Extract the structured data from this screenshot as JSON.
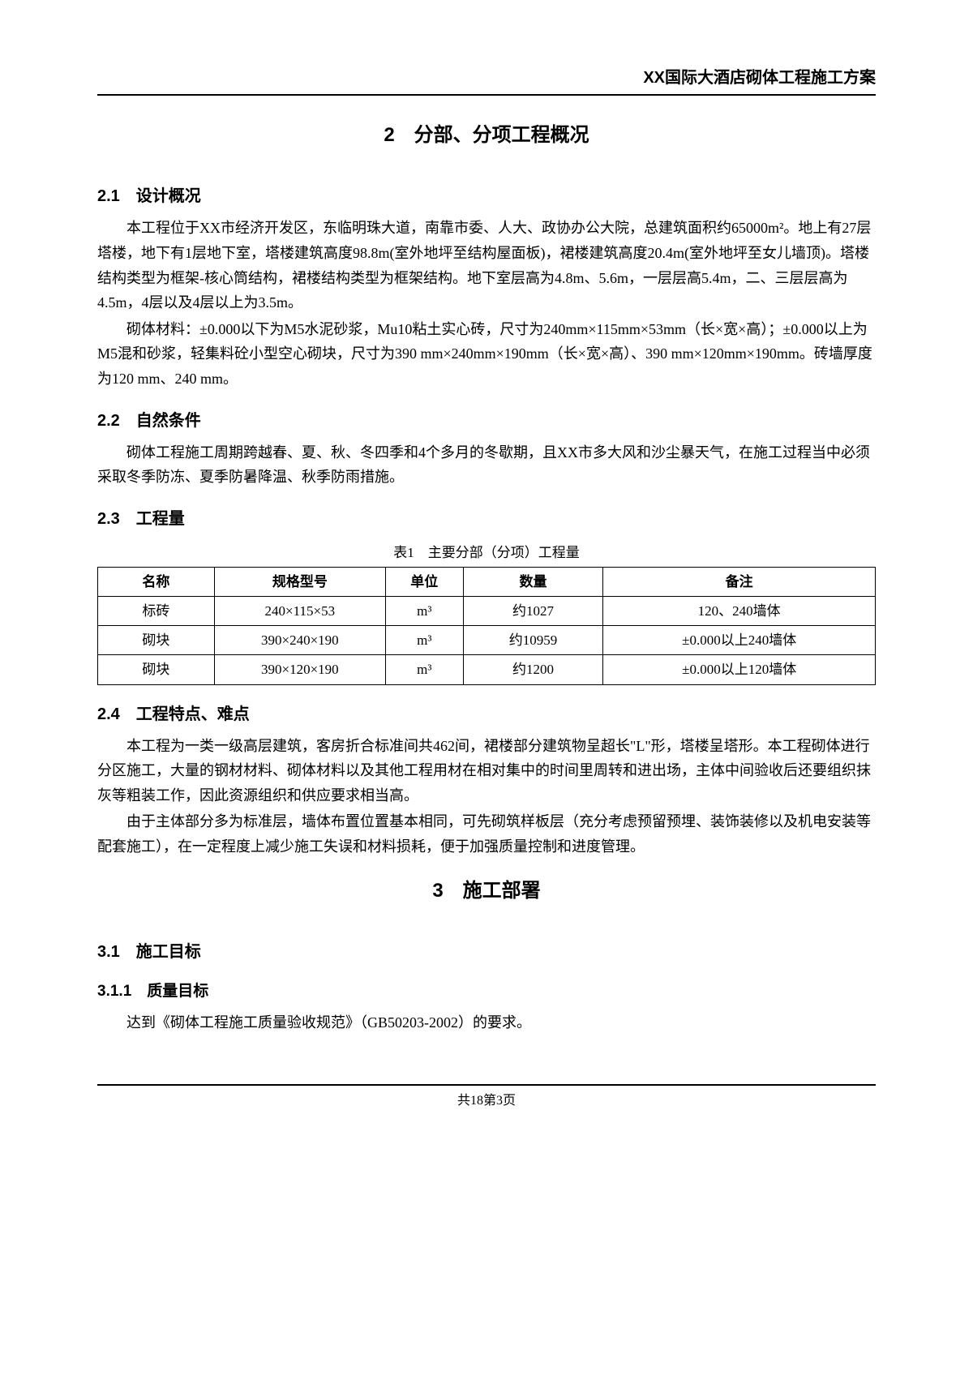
{
  "header": {
    "title": "XX国际大酒店砌体工程施工方案"
  },
  "chapter2": {
    "title": "2　分部、分项工程概况",
    "s2_1": {
      "heading": "2.1　设计概况",
      "p1": "本工程位于XX市经济开发区，东临明珠大道，南靠市委、人大、政协办公大院，总建筑面积约65000m²。地上有27层塔楼，地下有1层地下室，塔楼建筑高度98.8m(室外地坪至结构屋面板)，裙楼建筑高度20.4m(室外地坪至女儿墙顶)。塔楼结构类型为框架-核心筒结构，裙楼结构类型为框架结构。地下室层高为4.8m、5.6m，一层层高5.4m，二、三层层高为4.5m，4层以及4层以上为3.5m。",
      "p2": "砌体材料：±0.000以下为M5水泥砂浆，Mu10粘土实心砖，尺寸为240mm×115mm×53mm（长×宽×高）；±0.000以上为M5混和砂浆，轻集料砼小型空心砌块，尺寸为390 mm×240mm×190mm（长×宽×高）、390 mm×120mm×190mm。砖墙厚度为120 mm、240 mm。"
    },
    "s2_2": {
      "heading": "2.2　自然条件",
      "p1": "砌体工程施工周期跨越春、夏、秋、冬四季和4个多月的冬歇期，且XX市多大风和沙尘暴天气，在施工过程当中必须采取冬季防冻、夏季防暑降温、秋季防雨措施。"
    },
    "s2_3": {
      "heading": "2.3　工程量",
      "table": {
        "caption": "表1　主要分部（分项）工程量",
        "headers": [
          "名称",
          "规格型号",
          "单位",
          "数量",
          "备注"
        ],
        "rows": [
          [
            "标砖",
            "240×115×53",
            "m³",
            "约1027",
            "120、240墙体"
          ],
          [
            "砌块",
            "390×240×190",
            "m³",
            "约10959",
            "±0.000以上240墙体"
          ],
          [
            "砌块",
            "390×120×190",
            "m³",
            "约1200",
            "±0.000以上120墙体"
          ]
        ],
        "col_widths": [
          "15%",
          "22%",
          "10%",
          "18%",
          "35%"
        ]
      }
    },
    "s2_4": {
      "heading": "2.4　工程特点、难点",
      "p1": "本工程为一类一级高层建筑，客房折合标准间共462间，裙楼部分建筑物呈超长\"L\"形，塔楼呈塔形。本工程砌体进行分区施工，大量的钢材材料、砌体材料以及其他工程用材在相对集中的时间里周转和进出场，主体中间验收后还要组织抹灰等粗装工作，因此资源组织和供应要求相当高。",
      "p2": "由于主体部分多为标准层，墙体布置位置基本相同，可先砌筑样板层（充分考虑预留预埋、装饰装修以及机电安装等配套施工），在一定程度上减少施工失误和材料损耗，便于加强质量控制和进度管理。"
    }
  },
  "chapter3": {
    "title": "3　施工部署",
    "s3_1": {
      "heading": "3.1　施工目标"
    },
    "s3_1_1": {
      "heading": "3.1.1　质量目标",
      "p1": "达到《砌体工程施工质量验收规范》（GB50203-2002）的要求。"
    }
  },
  "footer": {
    "text": "共18第3页"
  }
}
